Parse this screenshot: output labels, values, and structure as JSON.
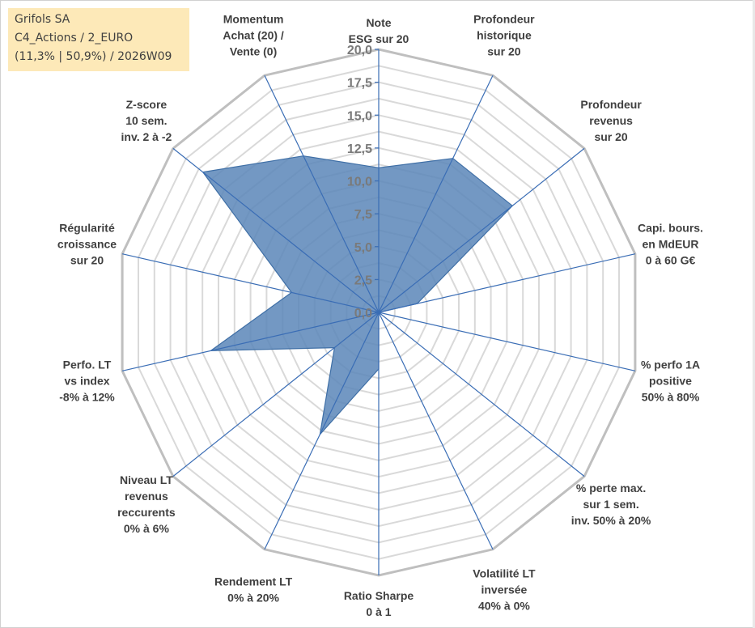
{
  "info": {
    "name": "Grifols SA",
    "line2": "C4_Actions / 2_EURO",
    "line3": "(11,3% | 50,9%) / 2026W09"
  },
  "colors": {
    "series_fill": "#5b86b8",
    "series_stroke": "#3f6fa6",
    "axis_line": "#3a6db5",
    "grid_outer": "#bfbfbf",
    "grid_inner": "#d9d9d9",
    "text": "#404040",
    "tick_text": "#7a7a7a",
    "info_bg": "#fde9b8"
  },
  "chart_data": {
    "type": "radar",
    "title": "",
    "rlim": [
      0,
      20
    ],
    "ticks": [
      "0,0",
      "2,5",
      "5,0",
      "7,5",
      "10,0",
      "12,5",
      "15,0",
      "17,5",
      "20,0"
    ],
    "categories": [
      [
        "Note",
        "ESG sur 20"
      ],
      [
        "Profondeur",
        "historique",
        "sur 20"
      ],
      [
        "Profondeur",
        "revenus",
        "sur 20"
      ],
      [
        "Capi. bours.",
        "en MdEUR",
        "0 à 60 G€"
      ],
      [
        "% perfo 1A",
        "positive",
        "50% à 80%"
      ],
      [
        "% perte max.",
        "sur 1 sem.",
        "inv. 50% à 20%"
      ],
      [
        "Volatilité LT",
        "inversée",
        "40% à 0%"
      ],
      [
        "Ratio Sharpe",
        "0 à 1"
      ],
      [
        "Rendement LT",
        "0% à 20%"
      ],
      [
        "Niveau LT",
        "revenus",
        "reccurents",
        "0% à 6%"
      ],
      [
        "Perfo. LT",
        "vs index",
        "-8% à 12%"
      ],
      [
        "Régularité",
        "croissance",
        "sur 20"
      ],
      [
        "Z-score",
        "10 sem.",
        "inv. 2 à -2"
      ],
      [
        "Momentum",
        "Achat (20) /",
        "Vente (0)"
      ]
    ],
    "series": [
      {
        "name": "Grifols SA",
        "values": [
          11.0,
          13.0,
          13.0,
          3.0,
          0.0,
          0.0,
          0.0,
          4.3,
          10.3,
          4.3,
          13.1,
          6.8,
          17.1,
          13.2
        ]
      }
    ]
  }
}
